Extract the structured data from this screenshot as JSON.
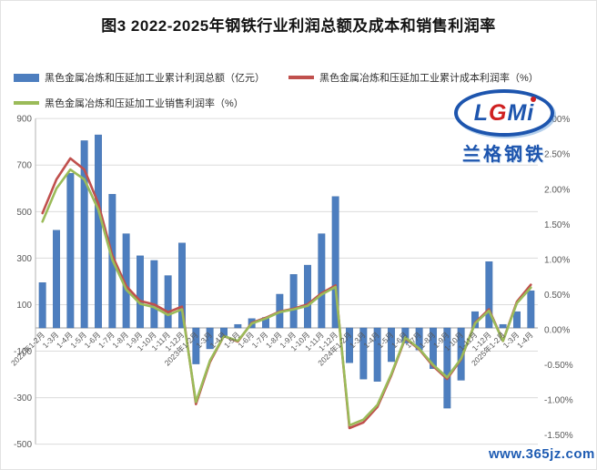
{
  "page": {
    "title": "图3 2022-2025年钢铁行业利润总额及成本和销售利润率"
  },
  "logo": {
    "l": "L",
    "g": "G",
    "mi": "Mi",
    "cn": "兰格钢铁"
  },
  "watermark": {
    "text": "www.365jz.com"
  },
  "chart_data": {
    "type": "combo (bar + 2 lines, dual axis)",
    "title": "图3 2022-2025年钢铁行业利润总额及成本和销售利润率",
    "legend_position": "top-left, two rows",
    "grid": "horizontal gridlines every 200 (left axis)",
    "categories": [
      "2022年1-2月",
      "1-3月",
      "1-4月",
      "1-5月",
      "1-6月",
      "1-7月",
      "1-8月",
      "1-9月",
      "1-10月",
      "1-11月",
      "1-12月",
      "2023年1-2月",
      "1-3月",
      "1-4月",
      "1-5月",
      "1-6月",
      "1-7月",
      "1-8月",
      "1-9月",
      "1-10月",
      "1-11月",
      "1-12月",
      "2024年1-2月",
      "1-3月",
      "1-4月",
      "1-5月",
      "1-6月",
      "1-7月",
      "1-8月",
      "1-9月",
      "1-10月",
      "1-11月",
      "1-12月",
      "2025年1-2月",
      "1-3月",
      "1-4月"
    ],
    "series": [
      {
        "name": "黑色金属冶炼和压延加工业累计利润总额（亿元）",
        "type": "bar",
        "axis": "left",
        "color": "#4d7ebf",
        "values": [
          195,
          420,
          665,
          805,
          830,
          575,
          405,
          310,
          290,
          225,
          365,
          -155,
          -90,
          -40,
          15,
          40,
          45,
          145,
          230,
          270,
          405,
          565,
          -150,
          -220,
          -230,
          -145,
          -65,
          -95,
          -175,
          -345,
          -225,
          70,
          285,
          15,
          70,
          160
        ]
      },
      {
        "name": "黑色金属冶炼和压延加工业累计成本利润率（%）",
        "type": "line",
        "axis": "right",
        "color": "#c0504d",
        "values": [
          1.66,
          2.14,
          2.44,
          2.28,
          1.8,
          1.06,
          0.62,
          0.41,
          0.36,
          0.25,
          0.33,
          -1.06,
          -0.46,
          -0.09,
          -0.17,
          0.1,
          0.17,
          0.26,
          0.3,
          0.36,
          0.52,
          0.63,
          -1.4,
          -1.32,
          -1.1,
          -0.65,
          -0.12,
          -0.28,
          -0.52,
          -0.7,
          -0.42,
          0.1,
          0.29,
          -0.16,
          0.4,
          0.64
        ]
      },
      {
        "name": "黑色金属冶炼和压延加工业销售利润率（%）",
        "type": "line",
        "axis": "right",
        "color": "#9bbb59",
        "values": [
          1.54,
          2.01,
          2.28,
          2.14,
          1.71,
          1.0,
          0.57,
          0.37,
          0.32,
          0.21,
          0.29,
          -1.03,
          -0.44,
          -0.09,
          -0.16,
          0.09,
          0.16,
          0.25,
          0.29,
          0.34,
          0.5,
          0.61,
          -1.36,
          -1.28,
          -1.07,
          -0.63,
          -0.11,
          -0.27,
          -0.5,
          -0.68,
          -0.41,
          0.09,
          0.27,
          -0.16,
          0.38,
          0.6
        ]
      }
    ],
    "left_axis": {
      "min": -500,
      "max": 900,
      "step": 200,
      "unit": "亿元"
    },
    "right_axis": {
      "min": -1.5,
      "max": 3.0,
      "step": 0.5,
      "unit": "%",
      "label_format": "0.00%"
    },
    "colors": {
      "bar": "#4d7ebf",
      "cost_margin_line": "#c0504d",
      "sales_margin_line": "#9bbb59",
      "gridline": "#dcdcdc",
      "axis_line": "#b3b3b3",
      "tick_text": "#595959"
    }
  }
}
